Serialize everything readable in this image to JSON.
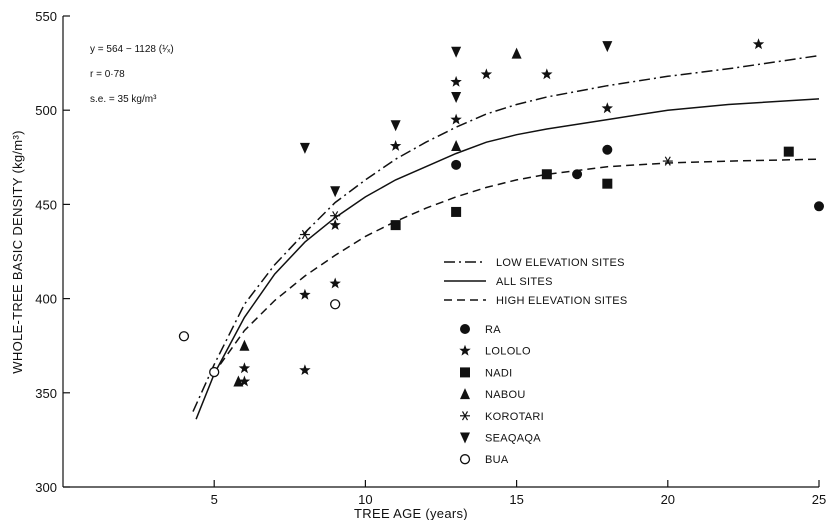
{
  "chart_data": {
    "type": "scatter",
    "title": "",
    "xlabel": "TREE AGE (years)",
    "ylabel": "WHOLE-TREE BASIC DENSITY (kg/m³)",
    "xlim": [
      0,
      25
    ],
    "ylim": [
      300,
      550
    ],
    "x_ticks": [
      5,
      10,
      15,
      20,
      25
    ],
    "y_ticks": [
      300,
      350,
      400,
      450,
      500,
      550
    ],
    "grid": false,
    "annotations": [
      "y = 564 − 1128 (¹⁄ₓ)",
      "r = 0·78",
      "s.e. = 35 kg/m³"
    ],
    "curves": [
      {
        "name": "LOW ELEVATION SITES",
        "style": "dash-dot",
        "points": [
          [
            4.3,
            340
          ],
          [
            5,
            365
          ],
          [
            6,
            397
          ],
          [
            7,
            418
          ],
          [
            8,
            435
          ],
          [
            9,
            451
          ],
          [
            10,
            463
          ],
          [
            11,
            474
          ],
          [
            12,
            483
          ],
          [
            13,
            491
          ],
          [
            14,
            498
          ],
          [
            15,
            503
          ],
          [
            16,
            507
          ],
          [
            18,
            513
          ],
          [
            20,
            518
          ],
          [
            22,
            522
          ],
          [
            25,
            529
          ]
        ]
      },
      {
        "name": "ALL SITES",
        "style": "solid",
        "points": [
          [
            4.4,
            336
          ],
          [
            5,
            360
          ],
          [
            6,
            390
          ],
          [
            7,
            413
          ],
          [
            8,
            430
          ],
          [
            9,
            443
          ],
          [
            10,
            454
          ],
          [
            11,
            463
          ],
          [
            12,
            470
          ],
          [
            13,
            477
          ],
          [
            14,
            483
          ],
          [
            15,
            487
          ],
          [
            16,
            490
          ],
          [
            18,
            495
          ],
          [
            20,
            500
          ],
          [
            22,
            503
          ],
          [
            25,
            506
          ]
        ]
      },
      {
        "name": "HIGH ELEVATION SITES",
        "style": "dashed",
        "points": [
          [
            5.2,
            365
          ],
          [
            6,
            383
          ],
          [
            7,
            399
          ],
          [
            8,
            412
          ],
          [
            9,
            423
          ],
          [
            10,
            433
          ],
          [
            11,
            441
          ],
          [
            12,
            448
          ],
          [
            13,
            454
          ],
          [
            14,
            459
          ],
          [
            15,
            463
          ],
          [
            16,
            466
          ],
          [
            18,
            470
          ],
          [
            20,
            472
          ],
          [
            22,
            473
          ],
          [
            25,
            474
          ]
        ]
      }
    ],
    "series": [
      {
        "name": "RA",
        "marker": "filled-circle",
        "points": [
          [
            13,
            471
          ],
          [
            17,
            466
          ],
          [
            18,
            479
          ],
          [
            25,
            449
          ]
        ]
      },
      {
        "name": "LOLOLO",
        "marker": "star",
        "points": [
          [
            6,
            363
          ],
          [
            6,
            356
          ],
          [
            8,
            362
          ],
          [
            8,
            402
          ],
          [
            9,
            408
          ],
          [
            9,
            439
          ],
          [
            11,
            481
          ],
          [
            13,
            495
          ],
          [
            13,
            515
          ],
          [
            14,
            519
          ],
          [
            16,
            519
          ],
          [
            18,
            501
          ],
          [
            23,
            535
          ]
        ]
      },
      {
        "name": "NADI",
        "marker": "filled-square",
        "points": [
          [
            11,
            439
          ],
          [
            13,
            446
          ],
          [
            16,
            466
          ],
          [
            18,
            461
          ],
          [
            24,
            478
          ]
        ]
      },
      {
        "name": "NABOU",
        "marker": "filled-triangle-up",
        "points": [
          [
            5.8,
            356
          ],
          [
            6,
            375
          ],
          [
            13,
            481
          ],
          [
            15,
            530
          ]
        ]
      },
      {
        "name": "KOROTARI",
        "marker": "asterisk",
        "points": [
          [
            8,
            434
          ],
          [
            9,
            444
          ],
          [
            20,
            473
          ]
        ]
      },
      {
        "name": "SEAQAQA",
        "marker": "filled-triangle-down",
        "points": [
          [
            8,
            480
          ],
          [
            9,
            457
          ],
          [
            11,
            492
          ],
          [
            13,
            531
          ],
          [
            13,
            507
          ],
          [
            18,
            534
          ]
        ]
      },
      {
        "name": "BUA",
        "marker": "open-circle",
        "points": [
          [
            4,
            380
          ],
          [
            5,
            361
          ],
          [
            9,
            397
          ]
        ]
      }
    ],
    "legend": {
      "placement": "center-right",
      "lines": [
        "LOW ELEVATION SITES",
        "ALL SITES",
        "HIGH ELEVATION SITES"
      ],
      "markers": [
        "RA",
        "LOLOLO",
        "NADI",
        "NABOU",
        "KOROTARI",
        "SEAQAQA",
        "BUA"
      ]
    }
  }
}
